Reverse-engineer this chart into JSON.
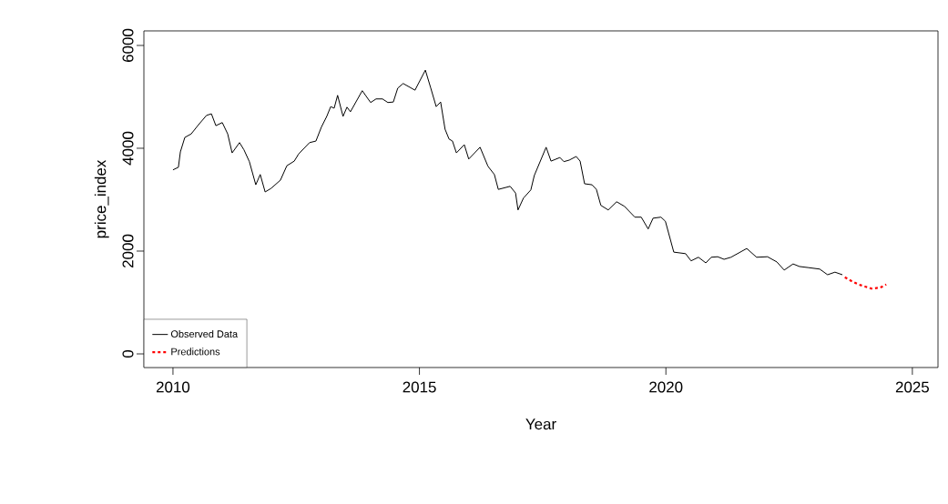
{
  "chart_data": {
    "type": "line",
    "xlabel": "Year",
    "ylabel": "price_index",
    "xlim": [
      2009.41,
      2025.52
    ],
    "ylim": [
      -265,
      6283
    ],
    "xticks": [
      2010,
      2015,
      2020,
      2025
    ],
    "yticks": [
      0,
      2000,
      4000,
      6000
    ],
    "grid": false,
    "legend": "bottom left",
    "marker": "none",
    "series": [
      {
        "name": "Observed Data",
        "color": "#000000",
        "line_style": "solid",
        "x": [
          2010.0,
          2010.11,
          2010.15,
          2010.24,
          2010.37,
          2010.52,
          2010.68,
          2010.78,
          2010.87,
          2011.0,
          2011.11,
          2011.2,
          2011.35,
          2011.44,
          2011.55,
          2011.68,
          2011.77,
          2011.87,
          2011.99,
          2012.18,
          2012.31,
          2012.46,
          2012.55,
          2012.77,
          2012.9,
          2013.01,
          2013.12,
          2013.2,
          2013.27,
          2013.34,
          2013.45,
          2013.53,
          2013.6,
          2013.84,
          2014.01,
          2014.12,
          2014.25,
          2014.36,
          2014.47,
          2014.56,
          2014.67,
          2014.91,
          2015.12,
          2015.23,
          2015.34,
          2015.43,
          2015.52,
          2015.6,
          2015.67,
          2015.75,
          2015.91,
          2016.0,
          2016.23,
          2016.39,
          2016.52,
          2016.6,
          2016.84,
          2016.95,
          2017.0,
          2017.11,
          2017.26,
          2017.33,
          2017.57,
          2017.67,
          2017.85,
          2017.93,
          2018.04,
          2018.18,
          2018.26,
          2018.35,
          2018.5,
          2018.59,
          2018.68,
          2018.83,
          2019.0,
          2019.16,
          2019.37,
          2019.5,
          2019.64,
          2019.74,
          2019.9,
          2019.99,
          2020.16,
          2020.4,
          2020.51,
          2020.66,
          2020.81,
          2020.92,
          2021.05,
          2021.18,
          2021.32,
          2021.64,
          2021.84,
          2022.06,
          2022.25,
          2022.4,
          2022.58,
          2022.71,
          2022.88,
          2023.12,
          2023.28,
          2023.43,
          2023.58
        ],
        "values": [
          3580,
          3630,
          3930,
          4210,
          4280,
          4460,
          4640,
          4670,
          4440,
          4500,
          4280,
          3910,
          4110,
          3970,
          3740,
          3290,
          3490,
          3150,
          3220,
          3380,
          3660,
          3750,
          3890,
          4110,
          4140,
          4410,
          4620,
          4810,
          4780,
          5030,
          4620,
          4800,
          4710,
          5120,
          4890,
          4960,
          4960,
          4890,
          4900,
          5170,
          5260,
          5130,
          5520,
          5170,
          4810,
          4900,
          4370,
          4180,
          4140,
          3910,
          4070,
          3790,
          4020,
          3650,
          3490,
          3200,
          3260,
          3130,
          2800,
          3030,
          3190,
          3470,
          4020,
          3750,
          3820,
          3740,
          3770,
          3840,
          3750,
          3310,
          3290,
          3200,
          2890,
          2800,
          2960,
          2870,
          2660,
          2660,
          2430,
          2640,
          2660,
          2580,
          1980,
          1950,
          1810,
          1880,
          1770,
          1880,
          1890,
          1840,
          1880,
          2050,
          1880,
          1890,
          1790,
          1630,
          1750,
          1700,
          1680,
          1650,
          1540,
          1590,
          1540
        ]
      },
      {
        "name": "Predictions",
        "color": "#ff0000",
        "line_style": "dashed",
        "x": [
          2023.63,
          2023.76,
          2023.91,
          2024.17,
          2024.35,
          2024.47
        ],
        "values": [
          1490,
          1420,
          1350,
          1270,
          1290,
          1350
        ]
      }
    ]
  }
}
